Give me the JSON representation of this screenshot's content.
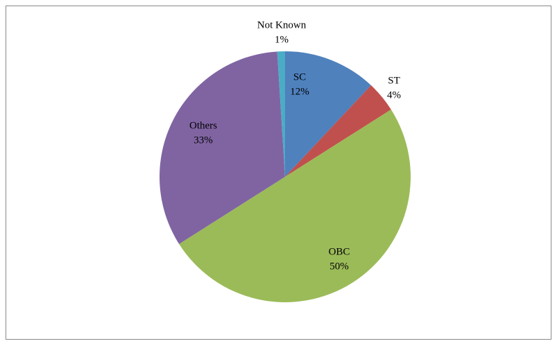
{
  "chart_data": {
    "type": "pie",
    "categories": [
      "SC",
      "ST",
      "OBC",
      "Others",
      "Not Known"
    ],
    "values": [
      12,
      4,
      50,
      33,
      1
    ],
    "value_labels": [
      "12%",
      "4%",
      "50%",
      "33%",
      "1%"
    ],
    "colors": [
      "#4f81bd",
      "#c0504d",
      "#9bbb59",
      "#8064a2",
      "#4bacc6"
    ]
  }
}
